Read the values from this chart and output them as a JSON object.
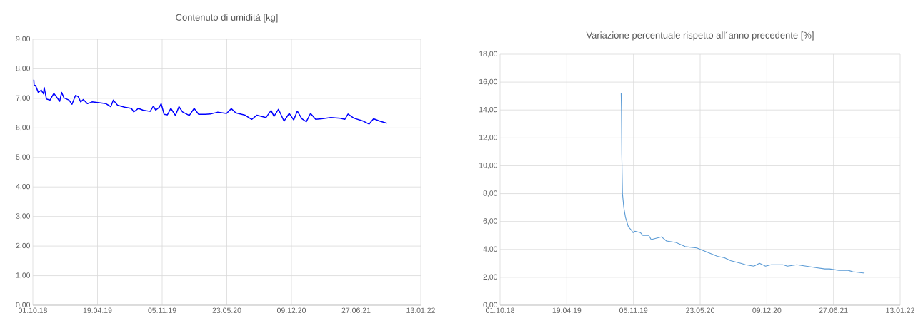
{
  "chart_data": [
    {
      "type": "line",
      "title": "Contenuto di umidità [kg]",
      "color": "#0000ff",
      "grid": true,
      "xlim": [
        "2018-10-01",
        "2022-01-13"
      ],
      "ylim": [
        0,
        9
      ],
      "xticks": [
        {
          "value": "2018-10-01",
          "label": "01.10.18"
        },
        {
          "value": "2019-04-19",
          "label": "19.04.19"
        },
        {
          "value": "2019-11-05",
          "label": "05.11.19"
        },
        {
          "value": "2020-05-23",
          "label": "23.05.20"
        },
        {
          "value": "2020-12-09",
          "label": "09.12.20"
        },
        {
          "value": "2021-06-27",
          "label": "27.06.21"
        },
        {
          "value": "2022-01-13",
          "label": "13.01.22"
        }
      ],
      "yticks": [
        {
          "value": 0,
          "label": "0,00"
        },
        {
          "value": 1,
          "label": "1,00"
        },
        {
          "value": 2,
          "label": "2,00"
        },
        {
          "value": 3,
          "label": "3,00"
        },
        {
          "value": 4,
          "label": "4,00"
        },
        {
          "value": 5,
          "label": "5,00"
        },
        {
          "value": 6,
          "label": "6,00"
        },
        {
          "value": 7,
          "label": "7,00"
        },
        {
          "value": 8,
          "label": "8,00"
        },
        {
          "value": 9,
          "label": "9,00"
        }
      ],
      "x": [
        "2018-10-04",
        "2018-10-05",
        "2018-10-09",
        "2018-10-18",
        "2018-10-27",
        "2018-11-03",
        "2018-11-05",
        "2018-11-12",
        "2018-11-23",
        "2018-12-05",
        "2018-12-23",
        "2018-12-29",
        "2019-01-05",
        "2019-01-21",
        "2019-01-30",
        "2019-02-10",
        "2019-02-18",
        "2019-02-26",
        "2019-03-06",
        "2019-03-19",
        "2019-04-02",
        "2019-04-24",
        "2019-05-15",
        "2019-05-30",
        "2019-06-07",
        "2019-06-20",
        "2019-07-12",
        "2019-08-02",
        "2019-08-09",
        "2019-08-24",
        "2019-09-07",
        "2019-09-29",
        "2019-10-09",
        "2019-10-16",
        "2019-10-27",
        "2019-11-02",
        "2019-11-11",
        "2019-11-21",
        "2019-12-02",
        "2019-12-16",
        "2019-12-27",
        "2020-01-07",
        "2020-01-28",
        "2020-02-12",
        "2020-02-26",
        "2020-03-18",
        "2020-04-02",
        "2020-04-24",
        "2020-05-22",
        "2020-06-06",
        "2020-06-20",
        "2020-07-19",
        "2020-08-08",
        "2020-08-24",
        "2020-09-21",
        "2020-10-07",
        "2020-10-16",
        "2020-10-30",
        "2020-11-16",
        "2020-12-02",
        "2020-12-16",
        "2020-12-27",
        "2021-01-10",
        "2021-01-24",
        "2021-02-06",
        "2021-02-22",
        "2021-03-12",
        "2021-04-10",
        "2021-05-09",
        "2021-05-23",
        "2021-06-02",
        "2021-06-20",
        "2021-07-19",
        "2021-08-06",
        "2021-08-20",
        "2021-09-08",
        "2021-09-30"
      ],
      "values": [
        7.63,
        7.43,
        7.44,
        7.2,
        7.28,
        7.15,
        7.37,
        6.98,
        6.94,
        7.17,
        6.9,
        7.2,
        7.02,
        6.94,
        6.8,
        7.1,
        7.06,
        6.88,
        6.96,
        6.82,
        6.88,
        6.85,
        6.82,
        6.72,
        6.94,
        6.77,
        6.7,
        6.66,
        6.54,
        6.66,
        6.6,
        6.56,
        6.74,
        6.6,
        6.7,
        6.82,
        6.46,
        6.44,
        6.66,
        6.42,
        6.72,
        6.54,
        6.42,
        6.66,
        6.46,
        6.46,
        6.47,
        6.53,
        6.49,
        6.65,
        6.51,
        6.43,
        6.29,
        6.43,
        6.35,
        6.59,
        6.39,
        6.63,
        6.23,
        6.49,
        6.27,
        6.57,
        6.31,
        6.21,
        6.49,
        6.29,
        6.31,
        6.35,
        6.33,
        6.29,
        6.47,
        6.33,
        6.23,
        6.13,
        6.31,
        6.23,
        6.16
      ]
    },
    {
      "type": "line",
      "title": "Variazione percentuale rispetto all´anno precedente [%]",
      "color": "#5b9bd5",
      "grid": true,
      "xlim": [
        "2018-10-01",
        "2022-01-13"
      ],
      "ylim": [
        0,
        18
      ],
      "xticks": [
        {
          "value": "2018-10-01",
          "label": "01.10.18"
        },
        {
          "value": "2019-04-19",
          "label": "19.04.19"
        },
        {
          "value": "2019-11-05",
          "label": "05.11.19"
        },
        {
          "value": "2020-05-23",
          "label": "23.05.20"
        },
        {
          "value": "2020-12-09",
          "label": "09.12.20"
        },
        {
          "value": "2021-06-27",
          "label": "27.06.21"
        },
        {
          "value": "2022-01-13",
          "label": "13.01.22"
        }
      ],
      "yticks": [
        {
          "value": 0,
          "label": "0,00"
        },
        {
          "value": 2,
          "label": "2,00"
        },
        {
          "value": 4,
          "label": "4,00"
        },
        {
          "value": 6,
          "label": "6,00"
        },
        {
          "value": 8,
          "label": "8,00"
        },
        {
          "value": 10,
          "label": "10,00"
        },
        {
          "value": 12,
          "label": "12,00"
        },
        {
          "value": 14,
          "label": "14,00"
        },
        {
          "value": 16,
          "label": "16,00"
        },
        {
          "value": 18,
          "label": "18,00"
        }
      ],
      "x": [
        "2019-09-29",
        "2019-09-30",
        "2019-10-01",
        "2019-10-02",
        "2019-10-03",
        "2019-10-07",
        "2019-10-12",
        "2019-10-21",
        "2019-10-29",
        "2019-11-04",
        "2019-11-09",
        "2019-11-26",
        "2019-12-03",
        "2019-12-21",
        "2019-12-28",
        "2020-01-28",
        "2020-02-12",
        "2020-03-11",
        "2020-04-08",
        "2020-05-13",
        "2020-07-14",
        "2020-08-04",
        "2020-08-22",
        "2020-09-22",
        "2020-10-06",
        "2020-10-31",
        "2020-11-17",
        "2020-12-05",
        "2020-12-22",
        "2021-01-26",
        "2021-02-09",
        "2021-03-09",
        "2021-04-06",
        "2021-05-04",
        "2021-06-01",
        "2021-06-15",
        "2021-07-13",
        "2021-08-10",
        "2021-08-24",
        "2021-09-28"
      ],
      "values": [
        15.2,
        13.9,
        10.8,
        9.4,
        8.0,
        7.0,
        6.3,
        5.6,
        5.4,
        5.2,
        5.3,
        5.2,
        5.0,
        5.0,
        4.7,
        4.9,
        4.6,
        4.5,
        4.2,
        4.1,
        3.5,
        3.4,
        3.2,
        3.0,
        2.9,
        2.8,
        3.0,
        2.8,
        2.9,
        2.9,
        2.8,
        2.9,
        2.8,
        2.7,
        2.6,
        2.6,
        2.5,
        2.5,
        2.4,
        2.3
      ]
    }
  ]
}
